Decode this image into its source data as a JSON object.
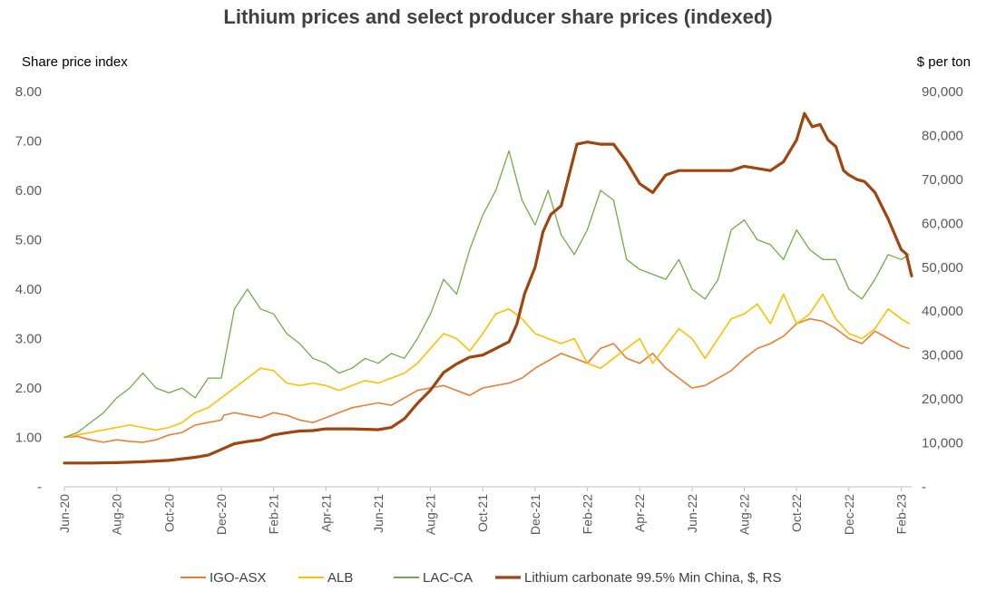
{
  "chart_data": {
    "type": "line",
    "title": "Lithium prices and select producer share prices (indexed)",
    "ylabel_left": "Share price index",
    "ylabel_right": "$ per ton",
    "x_ticks": [
      "Jun-20",
      "Aug-20",
      "Oct-20",
      "Dec-20",
      "Feb-21",
      "Apr-21",
      "Jun-21",
      "Aug-21",
      "Oct-21",
      "Dec-21",
      "Feb-22",
      "Apr-22",
      "Jun-22",
      "Aug-22",
      "Oct-22",
      "Dec-22",
      "Feb-23"
    ],
    "x_tick_index": [
      0,
      2,
      4,
      6,
      8,
      10,
      12,
      14,
      16,
      18,
      20,
      22,
      24,
      26,
      28,
      30,
      32
    ],
    "x_range": [
      0,
      32.4
    ],
    "y_left_ticks": [
      "-",
      "1.00",
      "2.00",
      "3.00",
      "4.00",
      "5.00",
      "6.00",
      "7.00",
      "8.00"
    ],
    "y_left_range": [
      0,
      8
    ],
    "y_right_ticks": [
      "-",
      "10,000",
      "20,000",
      "30,000",
      "40,000",
      "50,000",
      "60,000",
      "70,000",
      "80,000",
      "90,000"
    ],
    "y_right_range": [
      0,
      90000
    ],
    "grid": false,
    "legend_position": "bottom",
    "series": [
      {
        "name": "IGO-ASX",
        "axis": "left",
        "color": "#ED7D31",
        "width": 1.6,
        "x": [
          0,
          0.5,
          1,
          1.5,
          2,
          2.5,
          3,
          3.5,
          4,
          4.5,
          5,
          5.5,
          6,
          6.1,
          6.5,
          7,
          7.5,
          8,
          8.5,
          9,
          9.5,
          10,
          10.5,
          11,
          11.5,
          12,
          12.5,
          13,
          13.5,
          14,
          14.5,
          15,
          15.5,
          16,
          16.5,
          17,
          17.5,
          18,
          18.5,
          19,
          19.5,
          20,
          20.5,
          21,
          21.5,
          22,
          22.5,
          23,
          23.5,
          24,
          24.5,
          25,
          25.5,
          26,
          26.5,
          27,
          27.5,
          28,
          28.5,
          29,
          29.5,
          30,
          30.5,
          31,
          31.5,
          32,
          32.3
        ],
        "values": [
          1.0,
          1.02,
          0.95,
          0.9,
          0.95,
          0.92,
          0.9,
          0.95,
          1.05,
          1.1,
          1.25,
          1.3,
          1.35,
          1.45,
          1.5,
          1.45,
          1.4,
          1.5,
          1.45,
          1.35,
          1.3,
          1.4,
          1.5,
          1.6,
          1.65,
          1.7,
          1.65,
          1.8,
          1.95,
          2.0,
          2.05,
          1.95,
          1.85,
          2.0,
          2.05,
          2.1,
          2.2,
          2.4,
          2.55,
          2.7,
          2.6,
          2.5,
          2.8,
          2.9,
          2.6,
          2.5,
          2.7,
          2.4,
          2.2,
          2.0,
          2.05,
          2.2,
          2.35,
          2.6,
          2.8,
          2.9,
          3.05,
          3.3,
          3.4,
          3.35,
          3.2,
          3.0,
          2.9,
          3.15,
          3.0,
          2.85,
          2.8
        ]
      },
      {
        "name": "ALB",
        "axis": "left",
        "color": "#FFC000",
        "width": 1.6,
        "x": [
          0,
          0.5,
          1,
          1.5,
          2,
          2.5,
          3,
          3.5,
          4,
          4.5,
          5,
          5.5,
          6,
          6.5,
          7,
          7.5,
          8,
          8.5,
          9,
          9.5,
          10,
          10.5,
          11,
          11.5,
          12,
          12.5,
          13,
          13.5,
          14,
          14.5,
          15,
          15.5,
          16,
          16.5,
          17,
          17.5,
          18,
          18.5,
          19,
          19.5,
          20,
          20.5,
          21,
          21.5,
          22,
          22.5,
          23,
          23.5,
          24,
          24.5,
          25,
          25.5,
          26,
          26.5,
          27,
          27.5,
          28,
          28.5,
          29,
          29.5,
          30,
          30.5,
          31,
          31.5,
          32,
          32.3
        ],
        "values": [
          1.0,
          1.05,
          1.1,
          1.15,
          1.2,
          1.25,
          1.2,
          1.15,
          1.2,
          1.3,
          1.5,
          1.6,
          1.8,
          2.0,
          2.2,
          2.4,
          2.35,
          2.1,
          2.05,
          2.1,
          2.05,
          1.95,
          2.05,
          2.15,
          2.1,
          2.2,
          2.3,
          2.5,
          2.8,
          3.1,
          3.0,
          2.75,
          3.1,
          3.5,
          3.6,
          3.4,
          3.1,
          3.0,
          2.9,
          3.0,
          2.5,
          2.4,
          2.6,
          2.8,
          3.0,
          2.5,
          2.85,
          3.2,
          3.0,
          2.6,
          3.0,
          3.4,
          3.5,
          3.7,
          3.3,
          3.9,
          3.3,
          3.5,
          3.9,
          3.4,
          3.1,
          3.0,
          3.2,
          3.6,
          3.4,
          3.3
        ]
      },
      {
        "name": "LAC-CA",
        "axis": "left",
        "color": "#70AD47",
        "width": 1.3,
        "x": [
          0,
          0.5,
          1,
          1.5,
          2,
          2.5,
          3,
          3.5,
          4,
          4.5,
          5,
          5.5,
          6,
          6.5,
          7,
          7.5,
          8,
          8.5,
          9,
          9.5,
          10,
          10.5,
          11,
          11.5,
          12,
          12.5,
          13,
          13.5,
          14,
          14.5,
          15,
          15.5,
          16,
          16.5,
          17,
          17.5,
          18,
          18.5,
          19,
          19.5,
          20,
          20.5,
          21,
          21.5,
          22,
          22.5,
          23,
          23.5,
          24,
          24.5,
          25,
          25.5,
          26,
          26.5,
          27,
          27.5,
          28,
          28.5,
          29,
          29.5,
          30,
          30.5,
          31,
          31.5,
          32,
          32.3
        ],
        "values": [
          1.0,
          1.1,
          1.3,
          1.5,
          1.8,
          2.0,
          2.3,
          2.0,
          1.9,
          2.0,
          1.8,
          2.2,
          2.2,
          3.6,
          4.0,
          3.6,
          3.5,
          3.1,
          2.9,
          2.6,
          2.5,
          2.3,
          2.4,
          2.6,
          2.5,
          2.7,
          2.6,
          3.0,
          3.5,
          4.2,
          3.9,
          4.8,
          5.5,
          6.0,
          6.8,
          5.8,
          5.3,
          6.0,
          5.1,
          4.7,
          5.2,
          6.0,
          5.8,
          4.6,
          4.4,
          4.3,
          4.2,
          4.6,
          4.0,
          3.8,
          4.2,
          5.2,
          5.4,
          5.0,
          4.9,
          4.6,
          5.2,
          4.8,
          4.6,
          4.6,
          4.0,
          3.8,
          4.2,
          4.7,
          4.6,
          4.7
        ]
      },
      {
        "name": "Lithium carbonate 99.5% Min China, $, RS",
        "axis": "right",
        "color": "#A0450E",
        "width": 3.2,
        "x": [
          0,
          1,
          2,
          3,
          4,
          5,
          5.5,
          6,
          6.5,
          7,
          7.5,
          8,
          8.5,
          9,
          9.5,
          10,
          11,
          12,
          12.5,
          13,
          13.5,
          14,
          14.5,
          15,
          15.5,
          16,
          16.5,
          17,
          17.3,
          17.6,
          18,
          18.3,
          18.6,
          19,
          19.3,
          19.6,
          20,
          20.5,
          21,
          21.5,
          22,
          22.5,
          23,
          23.5,
          24,
          24.5,
          25,
          25.5,
          26,
          26.5,
          27,
          27.5,
          28,
          28.3,
          28.6,
          28.9,
          29.2,
          29.5,
          29.8,
          30,
          30.3,
          30.6,
          31,
          31.5,
          32,
          32.2,
          32.4
        ],
        "values": [
          5400,
          5400,
          5500,
          5700,
          6000,
          6700,
          7200,
          8500,
          9800,
          10300,
          10700,
          11800,
          12300,
          12700,
          12800,
          13200,
          13200,
          13000,
          13500,
          15500,
          19000,
          22000,
          26000,
          28000,
          29500,
          30000,
          31500,
          33000,
          37000,
          44000,
          50000,
          58000,
          62000,
          64000,
          71000,
          78000,
          78500,
          78000,
          78000,
          74000,
          69000,
          67000,
          71000,
          72000,
          72000,
          72000,
          72000,
          72000,
          73000,
          72500,
          72000,
          74000,
          79000,
          85000,
          82000,
          82500,
          79000,
          77500,
          72000,
          71000,
          70000,
          69500,
          67000,
          61000,
          54000,
          53000,
          48000
        ]
      }
    ]
  }
}
